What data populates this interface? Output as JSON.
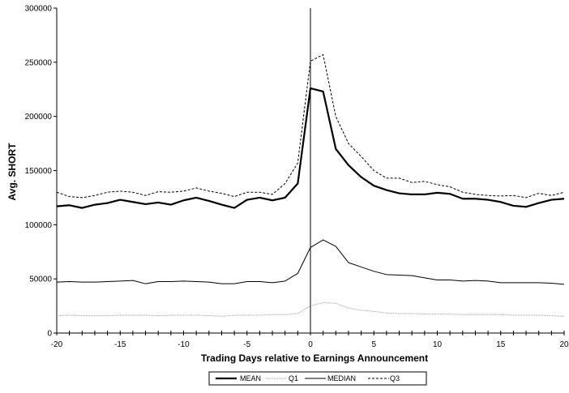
{
  "chart_data": {
    "type": "line",
    "title": "",
    "xlabel": "Trading Days relative to Earnings Announcement",
    "ylabel": "Avg. SHORT",
    "xlim": [
      -20,
      20
    ],
    "ylim": [
      0,
      300000
    ],
    "grid": false,
    "legend_position": "bottom",
    "x": [
      -20,
      -19,
      -18,
      -17,
      -16,
      -15,
      -14,
      -13,
      -12,
      -11,
      -10,
      -9,
      -8,
      -7,
      -6,
      -5,
      -4,
      -3,
      -2,
      -1,
      0,
      1,
      2,
      3,
      4,
      5,
      6,
      7,
      8,
      9,
      10,
      11,
      12,
      13,
      14,
      15,
      16,
      17,
      18,
      19,
      20
    ],
    "x_tick_labels": [
      "-20",
      "-15",
      "-10",
      "-5",
      "0",
      "5",
      "10",
      "15",
      "20"
    ],
    "x_tick_values": [
      -20,
      -15,
      -10,
      -5,
      0,
      5,
      10,
      15,
      20
    ],
    "y_tick_labels": [
      "0",
      "50000",
      "100000",
      "150000",
      "200000",
      "250000",
      "300000"
    ],
    "y_tick_values": [
      0,
      50000,
      100000,
      150000,
      200000,
      250000,
      300000
    ],
    "vertical_reference_line_x": 0,
    "series": [
      {
        "name": "MEAN",
        "style": "thick-solid",
        "color": "#000000",
        "values": [
          117000,
          118000,
          115500,
          118500,
          120000,
          123000,
          121000,
          119000,
          120500,
          118500,
          122500,
          125000,
          122000,
          118500,
          115500,
          123000,
          125000,
          122500,
          125000,
          138000,
          226000,
          223000,
          170000,
          155000,
          144000,
          136000,
          132000,
          129000,
          128000,
          128000,
          129500,
          128500,
          124000,
          124000,
          123000,
          121000,
          117500,
          116500,
          120000,
          123000,
          124000
        ]
      },
      {
        "name": "Q1",
        "style": "thin-dotted-gray",
        "color": "#999999",
        "values": [
          16000,
          16500,
          16000,
          16000,
          16000,
          16500,
          16500,
          16500,
          16000,
          16500,
          16500,
          16500,
          16000,
          15500,
          16500,
          16500,
          16500,
          17000,
          17000,
          18000,
          25000,
          28000,
          27500,
          23000,
          21000,
          20000,
          18500,
          18000,
          18000,
          17500,
          17500,
          17500,
          17000,
          17000,
          17000,
          17000,
          16500,
          16500,
          16500,
          16000,
          15500
        ]
      },
      {
        "name": "MEDIAN",
        "style": "thin-solid",
        "color": "#000000",
        "values": [
          47000,
          47500,
          47000,
          47000,
          47500,
          48000,
          48500,
          45500,
          47500,
          47500,
          48000,
          47500,
          47000,
          45500,
          45500,
          47500,
          47500,
          46500,
          48000,
          55000,
          79000,
          86000,
          80000,
          65000,
          61000,
          57000,
          54000,
          53500,
          53000,
          51000,
          49000,
          49000,
          48000,
          48500,
          48000,
          46500,
          46500,
          46500,
          46500,
          46000,
          45000
        ]
      },
      {
        "name": "Q3",
        "style": "dashed",
        "color": "#000000",
        "values": [
          130000,
          126000,
          125000,
          127000,
          130000,
          131000,
          130000,
          127000,
          130500,
          130000,
          131000,
          134000,
          131000,
          129000,
          126000,
          130000,
          130000,
          128000,
          138000,
          157000,
          251000,
          257000,
          200000,
          175000,
          163000,
          150000,
          143000,
          143000,
          139000,
          140000,
          137000,
          135000,
          130000,
          128000,
          127000,
          126500,
          127000,
          125000,
          129000,
          127000,
          130000
        ]
      }
    ]
  }
}
